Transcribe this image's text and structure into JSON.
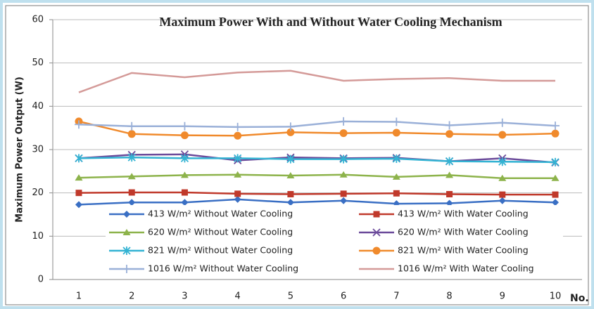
{
  "chart_data": {
    "type": "line",
    "title": "Maximum Power With and Without Water Cooling Mechanism",
    "ylabel": "Maximum Power Output (W)",
    "xlabel": "No.",
    "categories": [
      "1",
      "2",
      "3",
      "4",
      "5",
      "6",
      "7",
      "8",
      "9",
      "10"
    ],
    "ylim": [
      0,
      60
    ],
    "yticks": [
      0,
      10,
      20,
      30,
      40,
      50,
      60
    ],
    "grid": true,
    "series": [
      {
        "name": "413 W/m² Without Water Cooling",
        "color": "#3a6fc4",
        "marker": "diamond",
        "values": [
          17.3,
          17.8,
          17.8,
          18.5,
          17.8,
          18.2,
          17.5,
          17.6,
          18.2,
          17.8
        ]
      },
      {
        "name": "413 W/m² With Water Cooling",
        "color": "#c0392b",
        "marker": "square",
        "values": [
          20.0,
          20.1,
          20.1,
          19.8,
          19.7,
          19.8,
          19.9,
          19.7,
          19.6,
          19.6
        ]
      },
      {
        "name": "620 W/m² Without Water Cooling",
        "color": "#8db34b",
        "marker": "triangle",
        "values": [
          23.5,
          23.8,
          24.1,
          24.2,
          24.0,
          24.2,
          23.7,
          24.1,
          23.4,
          23.4
        ]
      },
      {
        "name": "620 W/m² With Water Cooling",
        "color": "#6b4a9a",
        "marker": "x",
        "values": [
          28.0,
          28.8,
          28.9,
          27.5,
          28.2,
          28.0,
          28.1,
          27.3,
          28.0,
          27.0
        ]
      },
      {
        "name": "821 W/m² Without Water Cooling",
        "color": "#33b3d3",
        "marker": "asterisk",
        "values": [
          28.0,
          28.2,
          28.0,
          28.0,
          27.8,
          27.8,
          27.9,
          27.3,
          27.2,
          27.1
        ]
      },
      {
        "name": "821 W/m² With Water Cooling",
        "color": "#f08a2c",
        "marker": "circle",
        "values": [
          36.5,
          33.6,
          33.3,
          33.2,
          34.0,
          33.8,
          33.9,
          33.6,
          33.4,
          33.7
        ]
      },
      {
        "name": "1016 W/m² Without Water Cooling",
        "color": "#9ab0d8",
        "marker": "plus",
        "values": [
          35.8,
          35.4,
          35.4,
          35.2,
          35.3,
          36.5,
          36.4,
          35.6,
          36.2,
          35.5
        ]
      },
      {
        "name": "1016 W/m² With Water Cooling",
        "color": "#d49a98",
        "marker": "none",
        "values": [
          43.2,
          47.7,
          46.7,
          47.8,
          48.2,
          45.9,
          46.3,
          46.5,
          45.9,
          45.9
        ]
      }
    ]
  }
}
